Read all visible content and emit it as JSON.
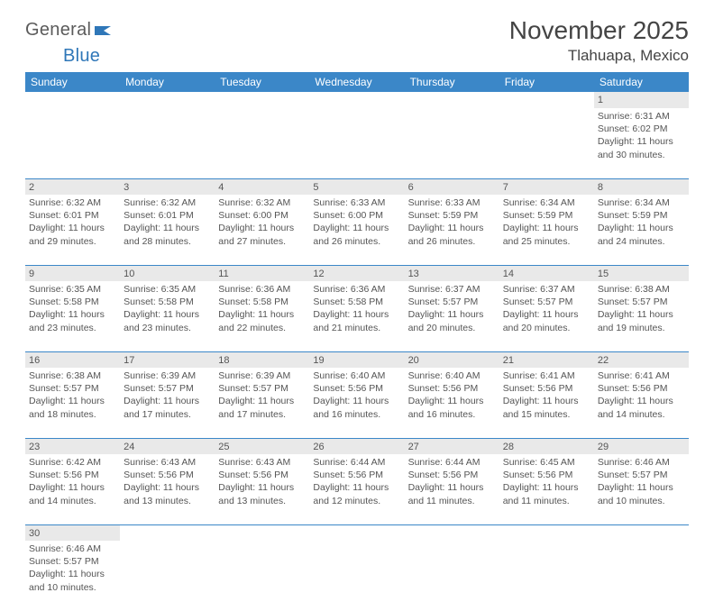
{
  "logo": {
    "general": "General",
    "blue": "Blue"
  },
  "title": "November 2025",
  "location": "Tlahuapa, Mexico",
  "colors": {
    "header_bg": "#3b87c8",
    "header_fg": "#ffffff",
    "daynum_bg": "#e9e9e9",
    "border": "#3b87c8",
    "text": "#555555",
    "page_bg": "#ffffff"
  },
  "weekdays": [
    "Sunday",
    "Monday",
    "Tuesday",
    "Wednesday",
    "Thursday",
    "Friday",
    "Saturday"
  ],
  "weeks": [
    [
      null,
      null,
      null,
      null,
      null,
      null,
      {
        "n": "1",
        "sr": "6:31 AM",
        "ss": "6:02 PM",
        "d": "11 hours and 30 minutes."
      }
    ],
    [
      {
        "n": "2",
        "sr": "6:32 AM",
        "ss": "6:01 PM",
        "d": "11 hours and 29 minutes."
      },
      {
        "n": "3",
        "sr": "6:32 AM",
        "ss": "6:01 PM",
        "d": "11 hours and 28 minutes."
      },
      {
        "n": "4",
        "sr": "6:32 AM",
        "ss": "6:00 PM",
        "d": "11 hours and 27 minutes."
      },
      {
        "n": "5",
        "sr": "6:33 AM",
        "ss": "6:00 PM",
        "d": "11 hours and 26 minutes."
      },
      {
        "n": "6",
        "sr": "6:33 AM",
        "ss": "5:59 PM",
        "d": "11 hours and 26 minutes."
      },
      {
        "n": "7",
        "sr": "6:34 AM",
        "ss": "5:59 PM",
        "d": "11 hours and 25 minutes."
      },
      {
        "n": "8",
        "sr": "6:34 AM",
        "ss": "5:59 PM",
        "d": "11 hours and 24 minutes."
      }
    ],
    [
      {
        "n": "9",
        "sr": "6:35 AM",
        "ss": "5:58 PM",
        "d": "11 hours and 23 minutes."
      },
      {
        "n": "10",
        "sr": "6:35 AM",
        "ss": "5:58 PM",
        "d": "11 hours and 23 minutes."
      },
      {
        "n": "11",
        "sr": "6:36 AM",
        "ss": "5:58 PM",
        "d": "11 hours and 22 minutes."
      },
      {
        "n": "12",
        "sr": "6:36 AM",
        "ss": "5:58 PM",
        "d": "11 hours and 21 minutes."
      },
      {
        "n": "13",
        "sr": "6:37 AM",
        "ss": "5:57 PM",
        "d": "11 hours and 20 minutes."
      },
      {
        "n": "14",
        "sr": "6:37 AM",
        "ss": "5:57 PM",
        "d": "11 hours and 20 minutes."
      },
      {
        "n": "15",
        "sr": "6:38 AM",
        "ss": "5:57 PM",
        "d": "11 hours and 19 minutes."
      }
    ],
    [
      {
        "n": "16",
        "sr": "6:38 AM",
        "ss": "5:57 PM",
        "d": "11 hours and 18 minutes."
      },
      {
        "n": "17",
        "sr": "6:39 AM",
        "ss": "5:57 PM",
        "d": "11 hours and 17 minutes."
      },
      {
        "n": "18",
        "sr": "6:39 AM",
        "ss": "5:57 PM",
        "d": "11 hours and 17 minutes."
      },
      {
        "n": "19",
        "sr": "6:40 AM",
        "ss": "5:56 PM",
        "d": "11 hours and 16 minutes."
      },
      {
        "n": "20",
        "sr": "6:40 AM",
        "ss": "5:56 PM",
        "d": "11 hours and 16 minutes."
      },
      {
        "n": "21",
        "sr": "6:41 AM",
        "ss": "5:56 PM",
        "d": "11 hours and 15 minutes."
      },
      {
        "n": "22",
        "sr": "6:41 AM",
        "ss": "5:56 PM",
        "d": "11 hours and 14 minutes."
      }
    ],
    [
      {
        "n": "23",
        "sr": "6:42 AM",
        "ss": "5:56 PM",
        "d": "11 hours and 14 minutes."
      },
      {
        "n": "24",
        "sr": "6:43 AM",
        "ss": "5:56 PM",
        "d": "11 hours and 13 minutes."
      },
      {
        "n": "25",
        "sr": "6:43 AM",
        "ss": "5:56 PM",
        "d": "11 hours and 13 minutes."
      },
      {
        "n": "26",
        "sr": "6:44 AM",
        "ss": "5:56 PM",
        "d": "11 hours and 12 minutes."
      },
      {
        "n": "27",
        "sr": "6:44 AM",
        "ss": "5:56 PM",
        "d": "11 hours and 11 minutes."
      },
      {
        "n": "28",
        "sr": "6:45 AM",
        "ss": "5:56 PM",
        "d": "11 hours and 11 minutes."
      },
      {
        "n": "29",
        "sr": "6:46 AM",
        "ss": "5:57 PM",
        "d": "11 hours and 10 minutes."
      }
    ],
    [
      {
        "n": "30",
        "sr": "6:46 AM",
        "ss": "5:57 PM",
        "d": "11 hours and 10 minutes."
      },
      null,
      null,
      null,
      null,
      null,
      null
    ]
  ],
  "labels": {
    "sunrise": "Sunrise:",
    "sunset": "Sunset:",
    "daylight": "Daylight:"
  }
}
